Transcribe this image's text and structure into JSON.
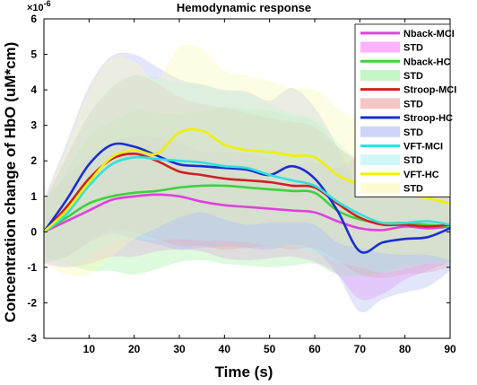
{
  "chart_data": {
    "type": "line",
    "title": "Hemodynamic response",
    "xlabel": "Time (s)",
    "ylabel": "Concentration change of HbO (uM*cm)",
    "y_exponent_base": "×10",
    "y_exponent_power": "-6",
    "xlim": [
      0,
      90
    ],
    "ylim": [
      -3,
      6
    ],
    "xticks": [
      10,
      20,
      30,
      40,
      50,
      60,
      70,
      80,
      90
    ],
    "yticks": [
      -3,
      -2,
      -1,
      0,
      1,
      2,
      3,
      4,
      5,
      6
    ],
    "x": [
      0,
      5,
      10,
      15,
      20,
      25,
      30,
      35,
      40,
      45,
      50,
      55,
      60,
      65,
      70,
      75,
      80,
      85,
      90
    ],
    "legend_position": "top-right",
    "std_label": "STD",
    "series": [
      {
        "name": "Nback-MCI",
        "color": "#e040e0",
        "band_color": "#ff80ff",
        "values": [
          0,
          0.3,
          0.6,
          0.9,
          1.0,
          1.05,
          1.0,
          0.85,
          0.75,
          0.7,
          0.65,
          0.6,
          0.55,
          0.3,
          0.1,
          0.05,
          0.15,
          0.1,
          0.15
        ],
        "std": [
          0.9,
          1.3,
          1.5,
          1.6,
          1.7,
          1.6,
          1.5,
          1.4,
          1.5,
          1.5,
          1.4,
          1.3,
          1.4,
          1.5,
          2.0,
          1.8,
          1.5,
          1.2,
          1.0
        ]
      },
      {
        "name": "Nback-HC",
        "color": "#40d040",
        "band_color": "#a0f0a0",
        "values": [
          0,
          0.4,
          0.8,
          1.0,
          1.1,
          1.15,
          1.25,
          1.3,
          1.3,
          1.25,
          1.2,
          1.15,
          1.1,
          0.6,
          0.35,
          0.25,
          0.25,
          0.2,
          0.15
        ],
        "std": [
          0.7,
          1.3,
          1.9,
          2.1,
          2.3,
          2.2,
          2.1,
          2.1,
          2.2,
          2.2,
          2.2,
          2.1,
          2.0,
          1.8,
          1.6,
          1.4,
          1.2,
          1.1,
          1.0
        ]
      },
      {
        "name": "Stroop-MCI",
        "color": "#d02020",
        "band_color": "#f0a0a0",
        "values": [
          0,
          0.7,
          1.5,
          2.05,
          2.2,
          2.0,
          1.7,
          1.6,
          1.5,
          1.45,
          1.4,
          1.3,
          1.25,
          0.8,
          0.4,
          0.2,
          0.2,
          0.15,
          0.2
        ],
        "std": [
          0.8,
          1.4,
          1.8,
          2.0,
          2.2,
          2.2,
          2.1,
          2.0,
          2.0,
          1.9,
          1.8,
          1.8,
          1.7,
          1.6,
          1.6,
          1.5,
          1.4,
          1.3,
          1.2
        ]
      },
      {
        "name": "Stroop-HC",
        "color": "#1a2ed0",
        "band_color": "#b0b8f0",
        "values": [
          0,
          0.9,
          1.9,
          2.45,
          2.4,
          2.15,
          1.9,
          1.85,
          1.8,
          1.75,
          1.6,
          1.85,
          1.5,
          0.6,
          -0.55,
          -0.3,
          -0.2,
          -0.15,
          0.1
        ],
        "std": [
          0.9,
          1.6,
          2.2,
          2.5,
          2.6,
          2.5,
          2.4,
          2.3,
          2.2,
          2.2,
          2.1,
          2.2,
          2.0,
          1.8,
          1.7,
          1.6,
          1.5,
          1.4,
          1.2
        ]
      },
      {
        "name": "VFT-MCI",
        "color": "#30e0e0",
        "band_color": "#b0f0f0",
        "values": [
          0,
          0.5,
          1.3,
          1.9,
          2.1,
          2.05,
          2.0,
          1.95,
          1.85,
          1.8,
          1.6,
          1.45,
          1.3,
          0.85,
          0.5,
          0.25,
          0.25,
          0.3,
          0.2
        ],
        "std": [
          0.8,
          1.5,
          2.0,
          2.2,
          2.3,
          2.3,
          2.2,
          2.2,
          2.1,
          2.1,
          2.0,
          1.9,
          1.9,
          1.7,
          1.5,
          1.4,
          1.3,
          1.2,
          1.1
        ]
      },
      {
        "name": "VFT-HC",
        "color": "#f0f000",
        "band_color": "#fafab0",
        "values": [
          0,
          0.6,
          1.4,
          2.1,
          2.3,
          2.2,
          2.8,
          2.85,
          2.45,
          2.3,
          2.25,
          2.15,
          2.1,
          1.6,
          1.35,
          1.2,
          1.05,
          0.95,
          0.8
        ],
        "std": [
          0.9,
          1.8,
          2.6,
          2.8,
          2.5,
          2.1,
          2.4,
          2.3,
          2.1,
          2.1,
          2.0,
          1.9,
          1.9,
          1.9,
          1.8,
          1.8,
          1.7,
          1.6,
          1.6
        ]
      }
    ]
  }
}
